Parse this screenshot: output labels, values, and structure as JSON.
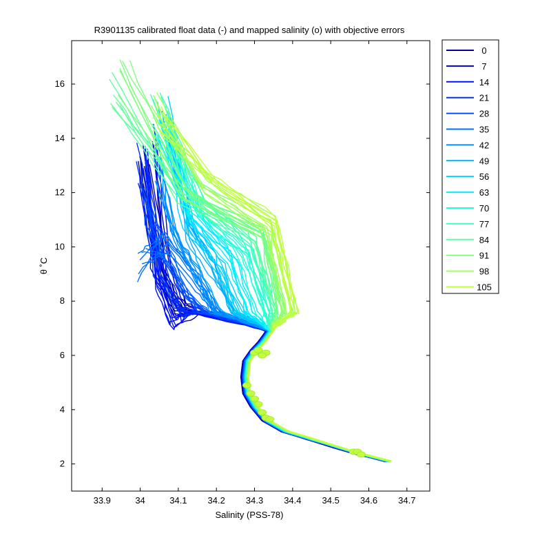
{
  "chart_data": {
    "type": "line",
    "title": "R3901135 calibrated float data (-) and mapped salinity (o) with objective errors",
    "xlabel": "Salinity (PSS-78)",
    "ylabel": "θ ˚C",
    "xlim": [
      33.82,
      34.76
    ],
    "ylim": [
      1.0,
      17.6
    ],
    "xticks": [
      33.9,
      34.0,
      34.1,
      34.2,
      34.3,
      34.4,
      34.5,
      34.6,
      34.7
    ],
    "xtick_labels": [
      "33.9",
      "34",
      "34.1",
      "34.2",
      "34.3",
      "34.4",
      "34.5",
      "34.6",
      "34.7"
    ],
    "yticks": [
      2,
      4,
      6,
      8,
      10,
      12,
      14,
      16
    ],
    "ytick_labels": [
      "2",
      "4",
      "6",
      "8",
      "10",
      "12",
      "14",
      "16"
    ],
    "grid": false,
    "legend_position": "outside-right",
    "colormap": "jet",
    "series": [
      {
        "name": "0",
        "color": "#00008f",
        "upper": {
          "s0": 34.0,
          "t0": 14.2,
          "s7": 34.09,
          "mode": 7.8
        }
      },
      {
        "name": "7",
        "color": "#0000c8",
        "upper": {
          "s0": 34.03,
          "t0": 14.6,
          "s7": 34.11,
          "mode": 7.5
        }
      },
      {
        "name": "14",
        "color": "#0010ff",
        "upper": {
          "s0": 34.01,
          "t0": 13.9,
          "s7": 34.08,
          "mode": 7.3
        }
      },
      {
        "name": "21",
        "color": "#0030ff",
        "upper": {
          "s0": 34.0,
          "t0": 13.8,
          "s7": 34.1,
          "mode": 7.6
        }
      },
      {
        "name": "28",
        "color": "#0050ff",
        "upper": {
          "s0": 34.02,
          "t0": 12.3,
          "s7": 34.12,
          "mode": 8.2
        }
      },
      {
        "name": "35",
        "color": "#0070ff",
        "upper": {
          "s0": 34.0,
          "t0": 10.3,
          "s7": 34.15,
          "mode": 8.6
        }
      },
      {
        "name": "42",
        "color": "#0090ff",
        "upper": {
          "s0": 34.05,
          "t0": 14.0,
          "s7": 34.15,
          "mode": 8.9
        }
      },
      {
        "name": "49",
        "color": "#00b0ff",
        "upper": {
          "s0": 34.07,
          "t0": 15.5,
          "s7": 34.18,
          "mode": 9.1
        }
      },
      {
        "name": "56",
        "color": "#00d0ff",
        "upper": {
          "s0": 34.06,
          "t0": 15.6,
          "s7": 34.21,
          "mode": 9.4
        }
      },
      {
        "name": "63",
        "color": "#00f0ff",
        "upper": {
          "s0": 34.05,
          "t0": 14.8,
          "s7": 34.24,
          "mode": 9.7
        }
      },
      {
        "name": "70",
        "color": "#20ffdf",
        "upper": {
          "s0": 34.06,
          "t0": 15.2,
          "s7": 34.27,
          "mode": 10.0
        }
      },
      {
        "name": "77",
        "color": "#40ffbf",
        "upper": {
          "s0": 34.04,
          "t0": 15.8,
          "s7": 34.29,
          "mode": 10.2
        }
      },
      {
        "name": "84",
        "color": "#60ff9f",
        "upper": {
          "s0": 33.93,
          "t0": 16.5,
          "s7": 34.31,
          "mode": 10.4
        }
      },
      {
        "name": "91",
        "color": "#80ff7f",
        "upper": {
          "s0": 33.96,
          "t0": 17.0,
          "s7": 34.33,
          "mode": 10.6
        }
      },
      {
        "name": "98",
        "color": "#a0ff5f",
        "upper": {
          "s0": 34.04,
          "t0": 16.0,
          "s7": 34.34,
          "mode": 10.8
        }
      },
      {
        "name": "105",
        "color": "#c0ff3f",
        "upper": {
          "s0": 34.06,
          "t0": 15.6,
          "s7": 34.35,
          "mode": 11.0
        }
      }
    ],
    "common_deep_profile": [
      [
        34.34,
        6.9
      ],
      [
        34.32,
        6.5
      ],
      [
        34.3,
        6.2
      ],
      [
        34.28,
        5.8
      ],
      [
        34.275,
        5.2
      ],
      [
        34.28,
        4.6
      ],
      [
        34.3,
        4.1
      ],
      [
        34.33,
        3.6
      ],
      [
        34.38,
        3.2
      ],
      [
        34.45,
        2.9
      ],
      [
        34.52,
        2.6
      ],
      [
        34.58,
        2.35
      ],
      [
        34.65,
        2.1
      ]
    ],
    "mapped_points": [
      [
        34.3,
        6.1
      ],
      [
        34.31,
        6.2
      ],
      [
        34.33,
        6.1
      ],
      [
        34.32,
        6.0
      ],
      [
        34.28,
        4.9
      ],
      [
        34.29,
        4.6
      ],
      [
        34.3,
        4.4
      ],
      [
        34.31,
        4.2
      ],
      [
        34.32,
        3.9
      ],
      [
        34.33,
        3.7
      ],
      [
        34.34,
        3.65
      ],
      [
        34.56,
        2.45
      ],
      [
        34.57,
        2.45
      ],
      [
        34.58,
        2.35
      ]
    ]
  }
}
